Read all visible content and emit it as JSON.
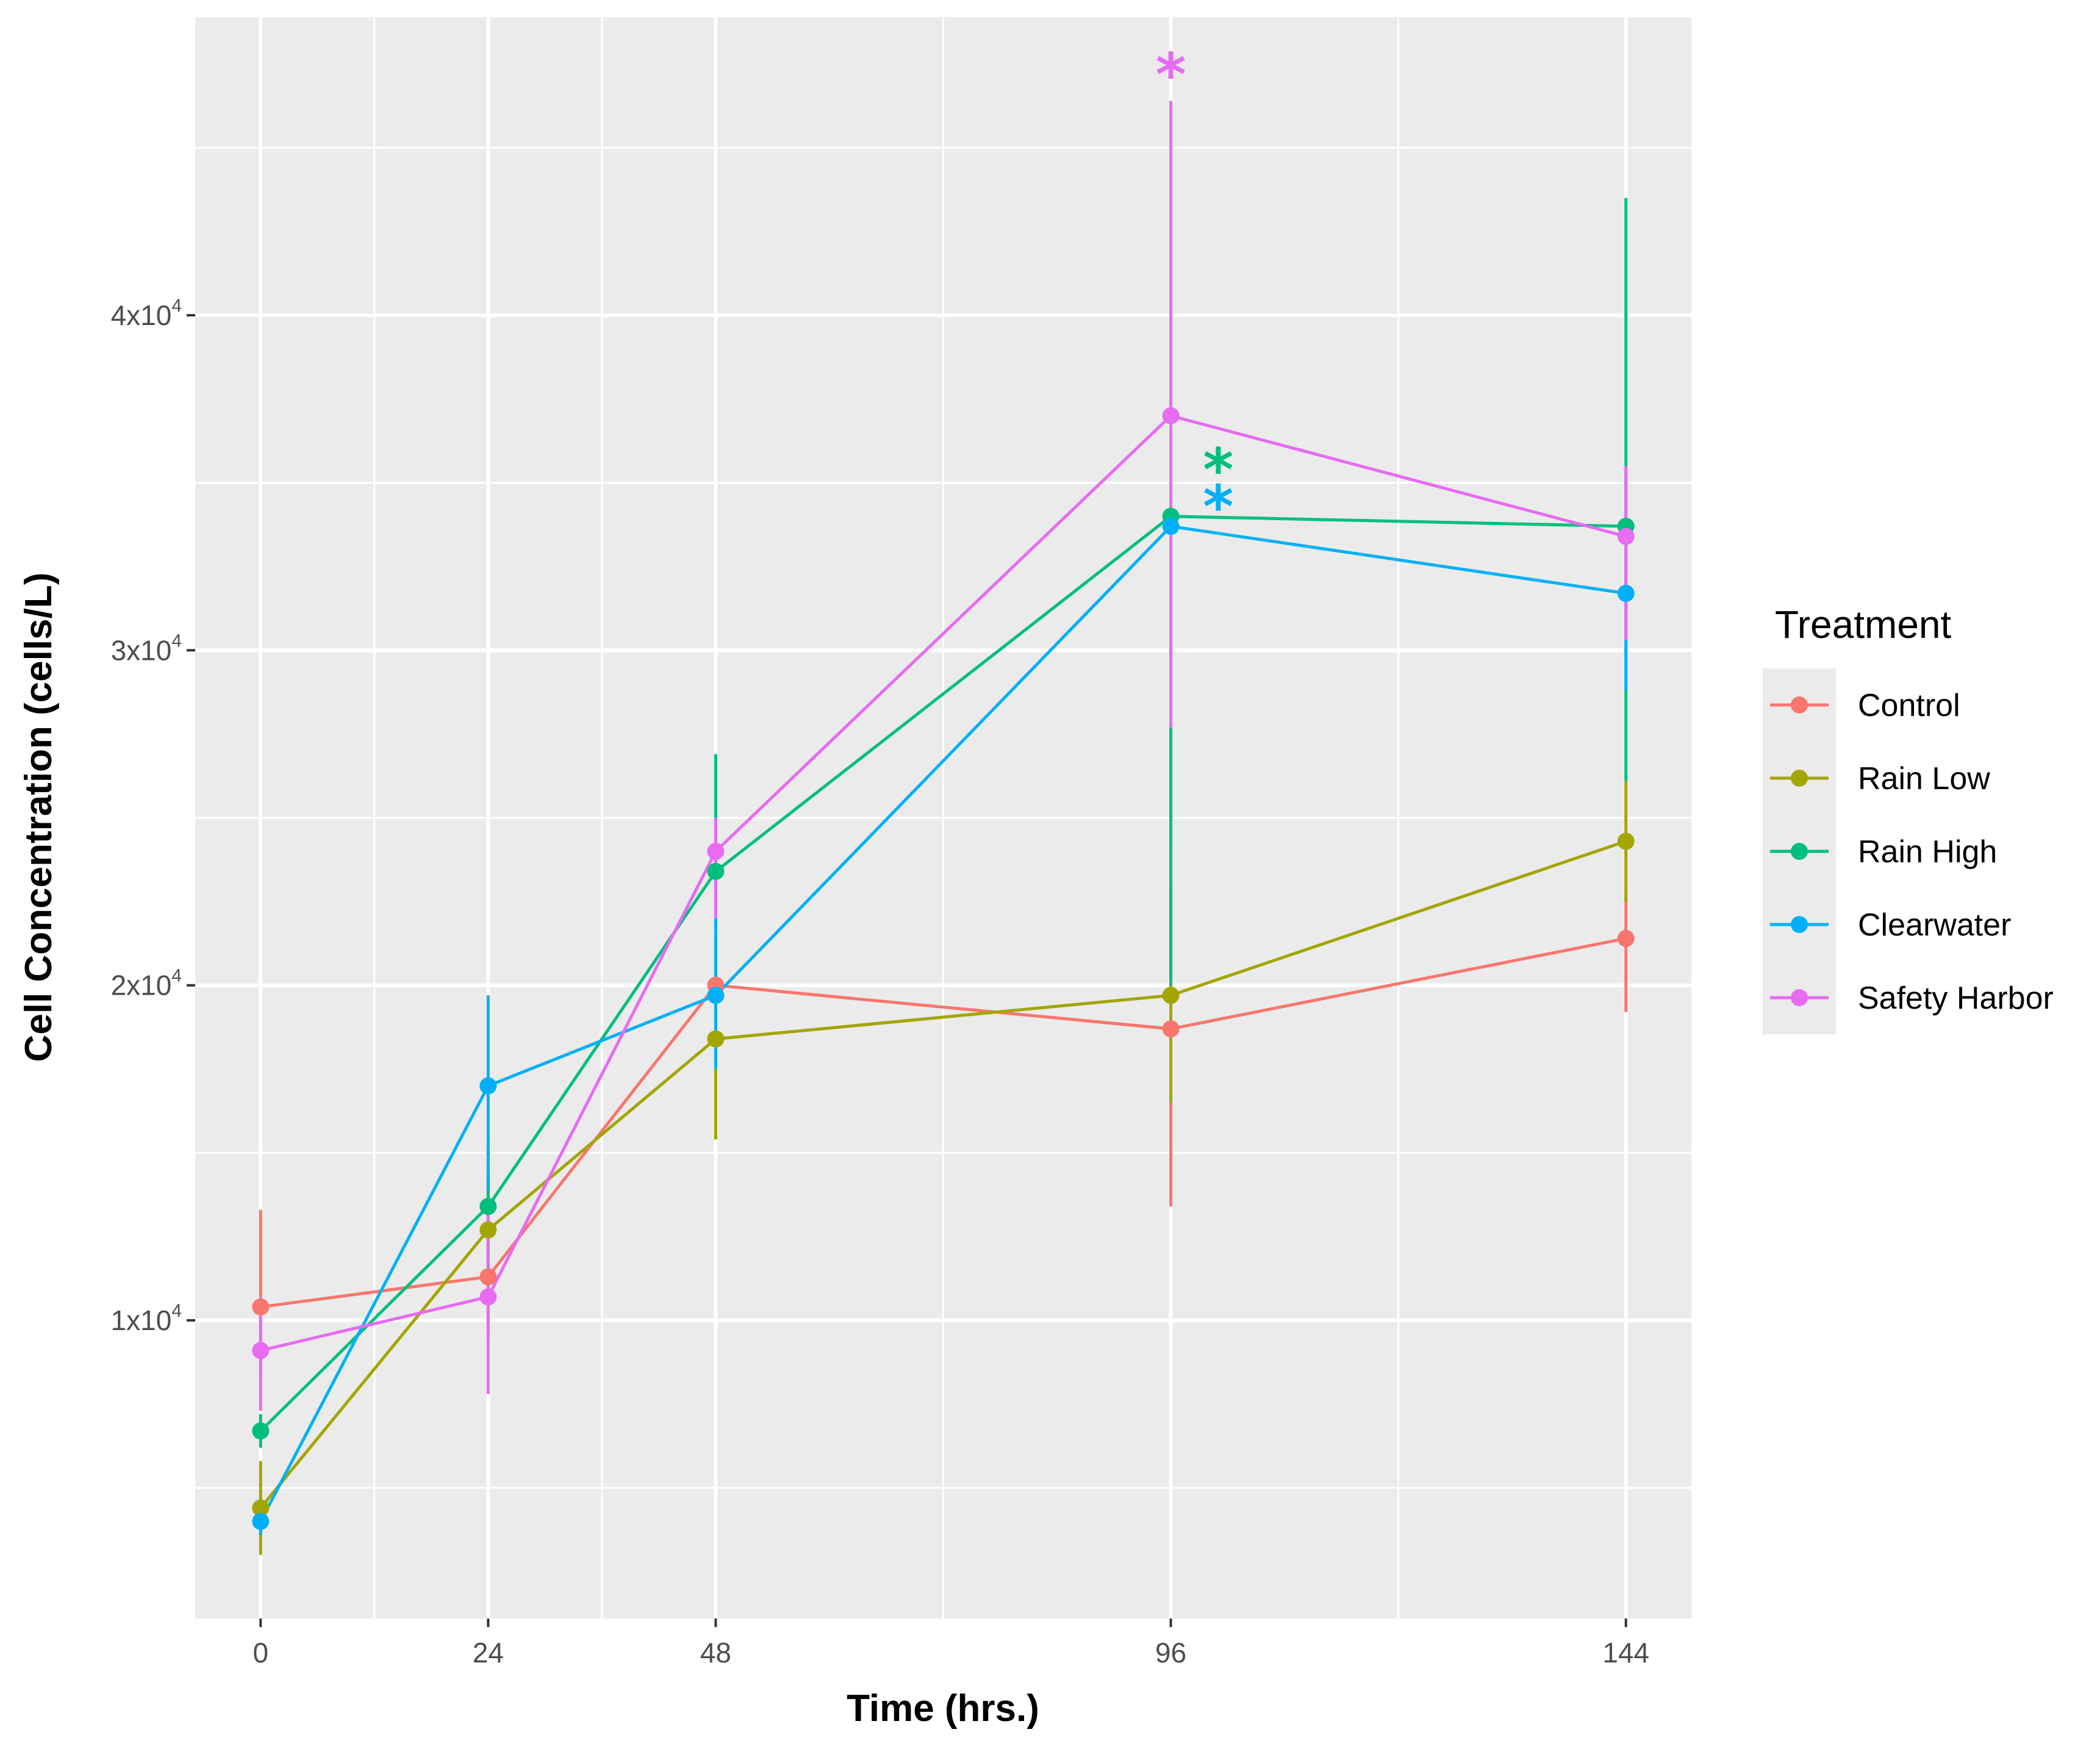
{
  "chart_data": {
    "type": "line",
    "title": "",
    "xlabel": "Time (hrs.)",
    "ylabel": "Cell Concentration (cells/L)",
    "x": [
      0,
      24,
      48,
      96,
      144
    ],
    "x_ticks": [
      {
        "value": 0,
        "label": "0"
      },
      {
        "value": 24,
        "label": "24"
      },
      {
        "value": 48,
        "label": "48"
      },
      {
        "value": 96,
        "label": "96"
      },
      {
        "value": 144,
        "label": "144"
      }
    ],
    "y_ticks": [
      {
        "value": 10000,
        "base": "1x10",
        "exp": "4"
      },
      {
        "value": 20000,
        "base": "2x10",
        "exp": "4"
      },
      {
        "value": 30000,
        "base": "3x10",
        "exp": "4"
      },
      {
        "value": 40000,
        "base": "4x10",
        "exp": "4"
      }
    ],
    "xlim": [
      -6.9,
      150.9
    ],
    "ylim": [
      1100,
      48900
    ],
    "grid": true,
    "legend_title": "Treatment",
    "legend_position": "right",
    "series": [
      {
        "name": "Control",
        "color": "#F8766D",
        "values": [
          10400,
          11300,
          20000,
          18700,
          21400
        ],
        "err_low": [
          8400,
          9500,
          18400,
          13400,
          19200
        ],
        "err_high": [
          13300,
          12800,
          21300,
          24100,
          22700
        ]
      },
      {
        "name": "Rain Low",
        "color": "#A3A500",
        "values": [
          4400,
          12700,
          18400,
          19700,
          24300
        ],
        "err_low": [
          3000,
          11000,
          15400,
          16500,
          22500
        ],
        "err_high": [
          5800,
          14400,
          21500,
          23000,
          26100
        ]
      },
      {
        "name": "Rain High",
        "color": "#00BF7D",
        "values": [
          6700,
          13400,
          23400,
          34000,
          33700
        ],
        "err_low": [
          6200,
          11500,
          21800,
          20000,
          26100
        ],
        "err_high": [
          7200,
          15300,
          26900,
          27700,
          43500
        ]
      },
      {
        "name": "Clearwater",
        "color": "#00B0F6",
        "values": [
          4000,
          17000,
          19700,
          33700,
          31700
        ],
        "err_low": [
          3600,
          13900,
          17500,
          28000,
          28800
        ],
        "err_high": [
          4400,
          19700,
          22000,
          34500,
          35400
        ]
      },
      {
        "name": "Safety Harbor",
        "color": "#E76BF3",
        "values": [
          9100,
          10700,
          24000,
          37000,
          33400
        ],
        "err_low": [
          7300,
          7800,
          22000,
          27700,
          30300
        ],
        "err_high": [
          10700,
          13200,
          25000,
          46400,
          35500
        ]
      }
    ],
    "annotations": [
      {
        "text": "*",
        "x": 96,
        "y": 47300,
        "color": "#E76BF3"
      },
      {
        "text": "*",
        "x": 101,
        "y": 35500,
        "color": "#00BF7D"
      },
      {
        "text": "*",
        "x": 101,
        "y": 34400,
        "color": "#00B0F6"
      }
    ]
  }
}
